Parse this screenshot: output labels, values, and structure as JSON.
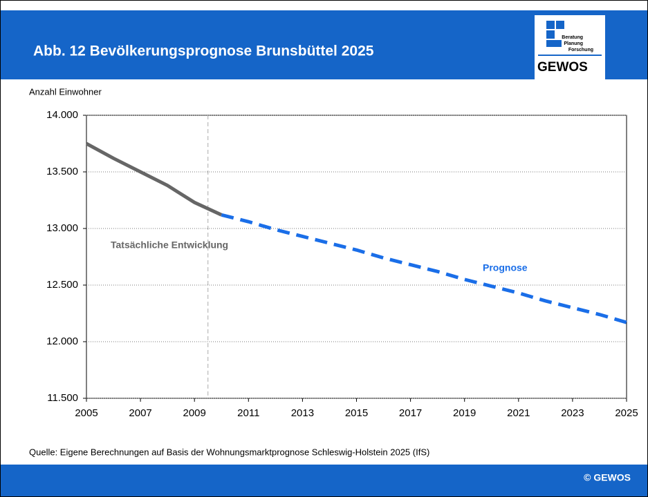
{
  "header": {
    "title": "Abb. 12  Bevölkerungsprognose Brunsbüttel 2025",
    "logo": {
      "lines": [
        "Beratung",
        "Planung",
        "Forschung"
      ],
      "name": "GEWOS"
    }
  },
  "chart_data": {
    "type": "line",
    "ylabel": "Anzahl Einwohner",
    "xlim": [
      2005,
      2025
    ],
    "xticks": [
      2005,
      2007,
      2009,
      2011,
      2013,
      2015,
      2017,
      2019,
      2021,
      2023,
      2025
    ],
    "ylim": [
      11500,
      14000
    ],
    "yticks": [
      {
        "value": 11500,
        "label": "11.500"
      },
      {
        "value": 12000,
        "label": "12.000"
      },
      {
        "value": 12500,
        "label": "12.500"
      },
      {
        "value": 13000,
        "label": "13.000"
      },
      {
        "value": 13500,
        "label": "13.500"
      },
      {
        "value": 14000,
        "label": "14.000"
      }
    ],
    "grid": true,
    "divider_x": 2009.5,
    "series": [
      {
        "name": "Tatsächliche Entwicklung",
        "color": "#666666",
        "dashed": false,
        "x": [
          2005,
          2006,
          2007,
          2008,
          2009,
          2010
        ],
        "values": [
          13750,
          13620,
          13500,
          13380,
          13230,
          13120
        ]
      },
      {
        "name": "Prognose",
        "color": "#1a6ee8",
        "dashed": true,
        "x": [
          2010,
          2011,
          2012,
          2013,
          2014,
          2015,
          2016,
          2017,
          2018,
          2019,
          2020,
          2021,
          2022,
          2023,
          2024,
          2025
        ],
        "values": [
          13120,
          13060,
          12990,
          12930,
          12870,
          12810,
          12740,
          12680,
          12620,
          12550,
          12490,
          12430,
          12360,
          12300,
          12240,
          12170
        ]
      }
    ]
  },
  "source": "Quelle: Eigene Berechnungen auf Basis  der Wohnungsmarktprognose Schleswig-Holstein 2025 (IfS)",
  "footer": "© GEWOS"
}
